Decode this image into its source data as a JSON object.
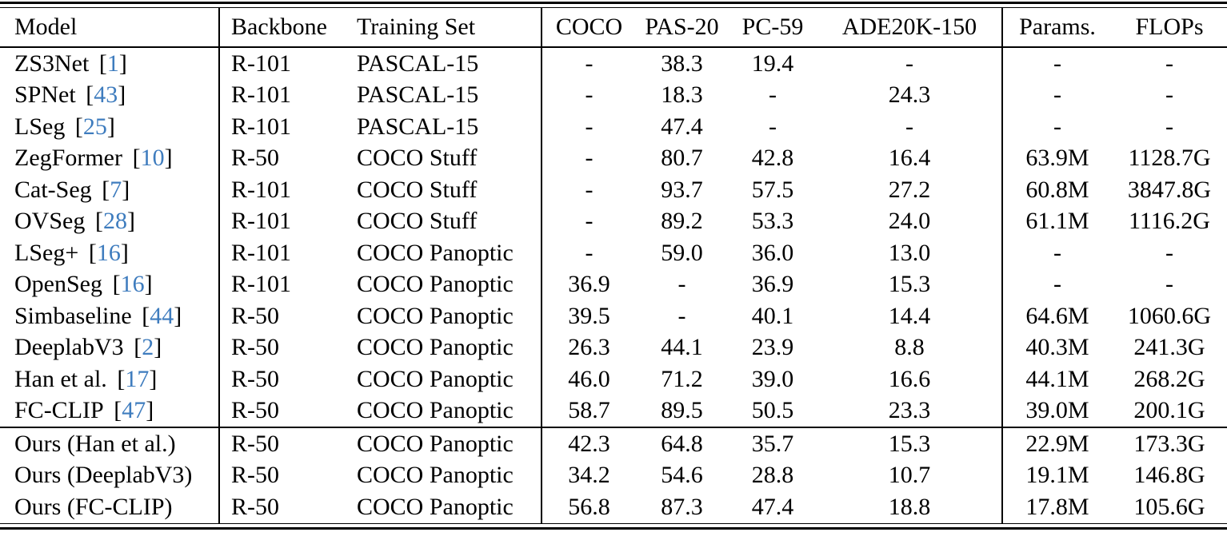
{
  "colors": {
    "citation": "#3e7cbe",
    "text": "#000000",
    "rule": "#000000",
    "background": "#ffffff"
  },
  "table": {
    "columns": [
      {
        "key": "model",
        "label": "Model",
        "align": "left"
      },
      {
        "key": "backbone",
        "label": "Backbone",
        "align": "left"
      },
      {
        "key": "training_set",
        "label": "Training Set",
        "align": "left"
      },
      {
        "key": "coco",
        "label": "COCO",
        "align": "center"
      },
      {
        "key": "pas20",
        "label": "PAS-20",
        "align": "center"
      },
      {
        "key": "pc59",
        "label": "PC-59",
        "align": "center"
      },
      {
        "key": "ade20k150",
        "label": "ADE20K-150",
        "align": "center"
      },
      {
        "key": "params",
        "label": "Params.",
        "align": "center"
      },
      {
        "key": "flops",
        "label": "FLOPs",
        "align": "center"
      }
    ],
    "rows": [
      {
        "group": "baseline",
        "model": "ZS3Net",
        "cite": "1",
        "backbone": "R-101",
        "training_set": "PASCAL-15",
        "coco": "-",
        "pas20": "38.3",
        "pc59": "19.4",
        "ade20k150": "-",
        "params": "-",
        "flops": "-"
      },
      {
        "group": "baseline",
        "model": "SPNet",
        "cite": "43",
        "backbone": "R-101",
        "training_set": "PASCAL-15",
        "coco": "-",
        "pas20": "18.3",
        "pc59": "-",
        "ade20k150": "24.3",
        "params": "-",
        "flops": "-"
      },
      {
        "group": "baseline",
        "model": "LSeg",
        "cite": "25",
        "backbone": "R-101",
        "training_set": "PASCAL-15",
        "coco": "-",
        "pas20": "47.4",
        "pc59": "-",
        "ade20k150": "-",
        "params": "-",
        "flops": "-"
      },
      {
        "group": "baseline",
        "model": "ZegFormer",
        "cite": "10",
        "backbone": "R-50",
        "training_set": "COCO Stuff",
        "coco": "-",
        "pas20": "80.7",
        "pc59": "42.8",
        "ade20k150": "16.4",
        "params": "63.9M",
        "flops": "1128.7G"
      },
      {
        "group": "baseline",
        "model": "Cat-Seg",
        "cite": "7",
        "backbone": "R-101",
        "training_set": "COCO Stuff",
        "coco": "-",
        "pas20": "93.7",
        "pc59": "57.5",
        "ade20k150": "27.2",
        "params": "60.8M",
        "flops": "3847.8G"
      },
      {
        "group": "baseline",
        "model": "OVSeg",
        "cite": "28",
        "backbone": "R-101",
        "training_set": "COCO Stuff",
        "coco": "-",
        "pas20": "89.2",
        "pc59": "53.3",
        "ade20k150": "24.0",
        "params": "61.1M",
        "flops": "1116.2G"
      },
      {
        "group": "baseline",
        "model": "LSeg+",
        "cite": "16",
        "backbone": "R-101",
        "training_set": "COCO Panoptic",
        "coco": "-",
        "pas20": "59.0",
        "pc59": "36.0",
        "ade20k150": "13.0",
        "params": "-",
        "flops": "-"
      },
      {
        "group": "baseline",
        "model": "OpenSeg",
        "cite": "16",
        "backbone": "R-101",
        "training_set": "COCO Panoptic",
        "coco": "36.9",
        "pas20": "-",
        "pc59": "36.9",
        "ade20k150": "15.3",
        "params": "-",
        "flops": "-"
      },
      {
        "group": "baseline",
        "model": "Simbaseline",
        "cite": "44",
        "backbone": "R-50",
        "training_set": "COCO Panoptic",
        "coco": "39.5",
        "pas20": "-",
        "pc59": "40.1",
        "ade20k150": "14.4",
        "params": "64.6M",
        "flops": "1060.6G"
      },
      {
        "group": "baseline",
        "model": "DeeplabV3",
        "cite": "2",
        "backbone": "R-50",
        "training_set": "COCO Panoptic",
        "coco": "26.3",
        "pas20": "44.1",
        "pc59": "23.9",
        "ade20k150": "8.8",
        "params": "40.3M",
        "flops": "241.3G"
      },
      {
        "group": "baseline",
        "model": "Han et al.",
        "cite": "17",
        "backbone": "R-50",
        "training_set": "COCO Panoptic",
        "coco": "46.0",
        "pas20": "71.2",
        "pc59": "39.0",
        "ade20k150": "16.6",
        "params": "44.1M",
        "flops": "268.2G"
      },
      {
        "group": "baseline",
        "model": "FC-CLIP",
        "cite": "47",
        "backbone": "R-50",
        "training_set": "COCO Panoptic",
        "coco": "58.7",
        "pas20": "89.5",
        "pc59": "50.5",
        "ade20k150": "23.3",
        "params": "39.0M",
        "flops": "200.1G"
      },
      {
        "group": "ours",
        "model": "Ours (Han et al.)",
        "cite": null,
        "backbone": "R-50",
        "training_set": "COCO Panoptic",
        "coco": "42.3",
        "pas20": "64.8",
        "pc59": "35.7",
        "ade20k150": "15.3",
        "params": "22.9M",
        "flops": "173.3G"
      },
      {
        "group": "ours",
        "model": "Ours (DeeplabV3)",
        "cite": null,
        "backbone": "R-50",
        "training_set": "COCO Panoptic",
        "coco": "34.2",
        "pas20": "54.6",
        "pc59": "28.8",
        "ade20k150": "10.7",
        "params": "19.1M",
        "flops": "146.8G"
      },
      {
        "group": "ours",
        "model": "Ours (FC-CLIP)",
        "cite": null,
        "backbone": "R-50",
        "training_set": "COCO Panoptic",
        "coco": "56.8",
        "pas20": "87.3",
        "pc59": "47.4",
        "ade20k150": "18.8",
        "params": "17.8M",
        "flops": "105.6G"
      }
    ],
    "column_widths": {
      "model": 274,
      "backbone": 166,
      "training_set": 237,
      "coco": 118,
      "pas20": 115,
      "pc59": 112,
      "ade20k150": 231,
      "params": 137,
      "flops": 144
    }
  }
}
